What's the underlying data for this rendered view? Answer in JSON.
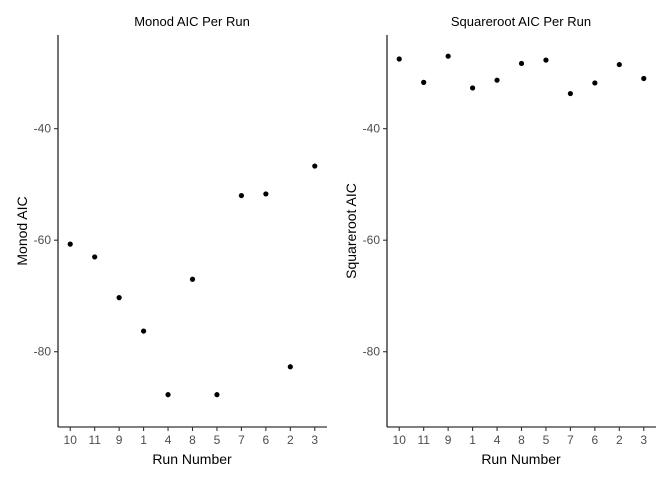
{
  "chart_data": [
    {
      "type": "scatter",
      "title": "Monod AIC Per Run",
      "xlabel": "Run Number",
      "ylabel": "Monod AIC",
      "categories": [
        "10",
        "11",
        "9",
        "1",
        "4",
        "8",
        "5",
        "7",
        "6",
        "2",
        "3"
      ],
      "values": [
        -60.7,
        -63.0,
        -70.3,
        -76.3,
        -87.7,
        -67.0,
        -87.7,
        -52.0,
        -51.7,
        -82.7,
        -46.7
      ],
      "ylim": [
        -93.5,
        -23.2
      ],
      "yticks": [
        -40,
        -60,
        -80
      ],
      "grid": false
    },
    {
      "type": "scatter",
      "title": "Squareroot AIC Per Run",
      "xlabel": "Run Number",
      "ylabel": "Squareroot AIC",
      "categories": [
        "10",
        "11",
        "9",
        "1",
        "4",
        "8",
        "5",
        "7",
        "6",
        "2",
        "3"
      ],
      "values": [
        -27.5,
        -31.7,
        -27.0,
        -32.7,
        -31.3,
        -28.3,
        -27.7,
        -33.7,
        -31.8,
        -28.5,
        -31.0
      ],
      "ylim": [
        -93.5,
        -23.2
      ],
      "yticks": [
        -40,
        -60,
        -80
      ],
      "grid": false
    }
  ]
}
